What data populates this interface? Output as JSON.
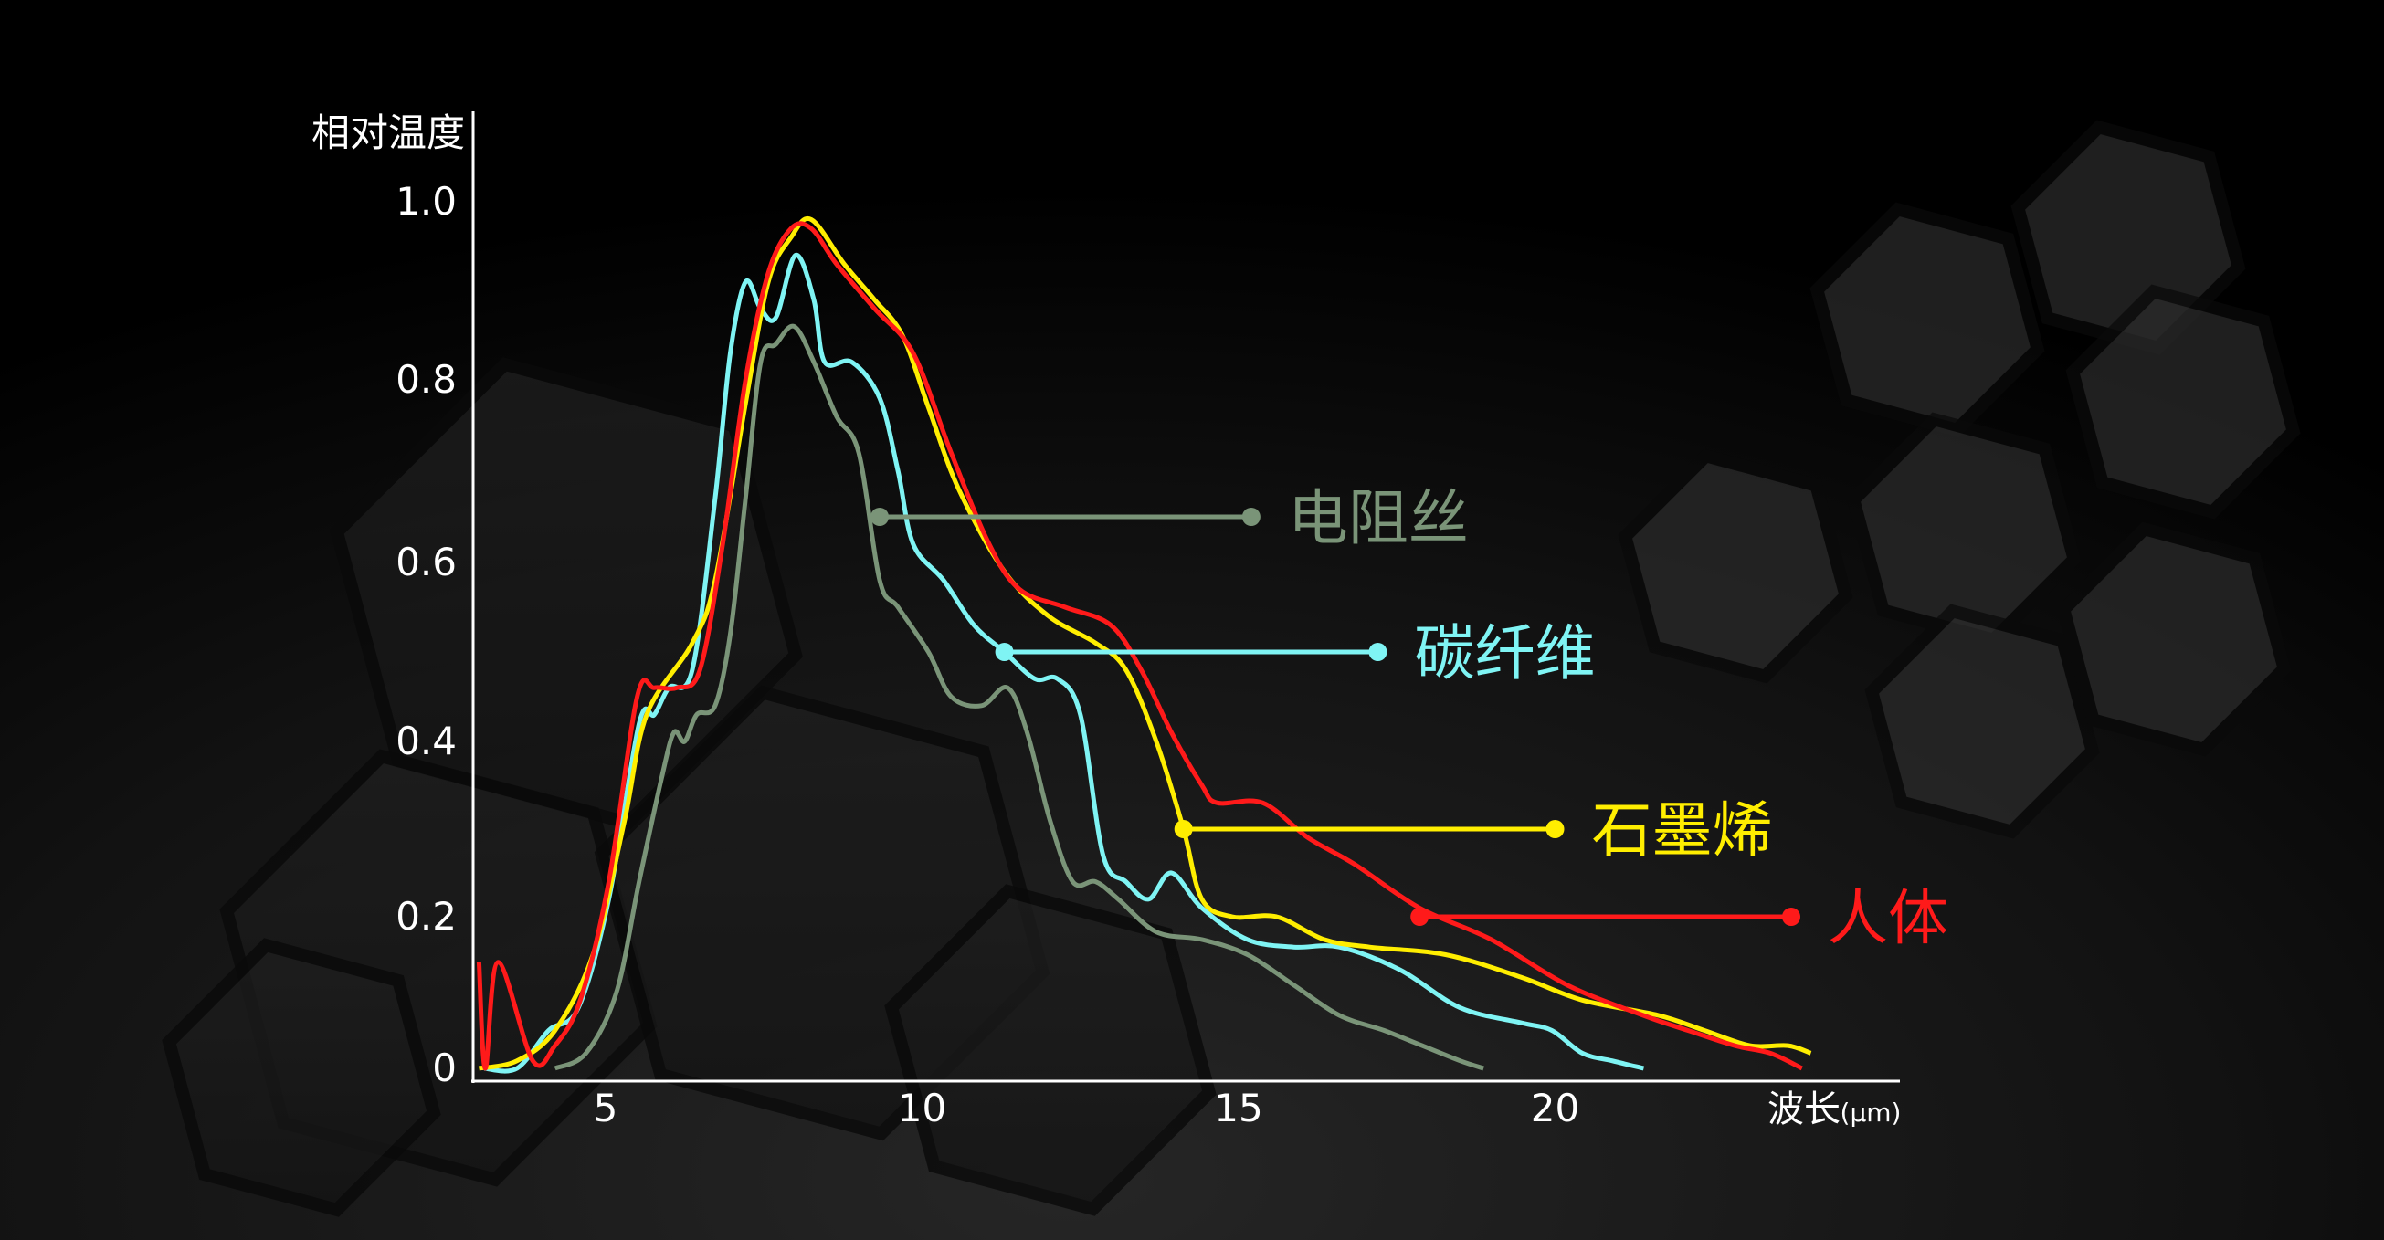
{
  "chart_data": {
    "type": "line",
    "title": "",
    "ylabel": "相对温度",
    "xlabel": "波长",
    "xunit": "(μm)",
    "xlim": [
      3,
      25
    ],
    "ylim": [
      0,
      1.0
    ],
    "xticks": [
      5,
      10,
      15,
      20
    ],
    "yticks": [
      {
        "value": 0,
        "label": "0"
      },
      {
        "value": 0.2,
        "label": "0.2"
      },
      {
        "value": 0.4,
        "label": "0.4"
      },
      {
        "value": 0.6,
        "label": "0.6"
      },
      {
        "value": 0.8,
        "label": "0.8"
      },
      {
        "value": 1.0,
        "label": "1.0"
      }
    ],
    "grid": false,
    "legend": "inline labels with leader lines",
    "series": [
      {
        "name": "电阻丝",
        "color": "#7a9478",
        "label_line": {
          "from": [
            9.33,
            0.65
          ],
          "to_x": 15.2
        },
        "points": [
          [
            4.2,
            0.0
          ],
          [
            4.69,
            0.02
          ],
          [
            5.17,
            0.1
          ],
          [
            5.53,
            0.24
          ],
          [
            5.89,
            0.36
          ],
          [
            6.08,
            0.41
          ],
          [
            6.25,
            0.4
          ],
          [
            6.44,
            0.43
          ],
          [
            6.73,
            0.44
          ],
          [
            6.97,
            0.52
          ],
          [
            7.21,
            0.67
          ],
          [
            7.45,
            0.82
          ],
          [
            7.69,
            0.84
          ],
          [
            7.98,
            0.86
          ],
          [
            8.29,
            0.82
          ],
          [
            8.65,
            0.76
          ],
          [
            9.0,
            0.72
          ],
          [
            9.33,
            0.58
          ],
          [
            9.62,
            0.55
          ],
          [
            10.1,
            0.5
          ],
          [
            10.46,
            0.45
          ],
          [
            10.94,
            0.44
          ],
          [
            11.35,
            0.46
          ],
          [
            11.66,
            0.41
          ],
          [
            12.02,
            0.31
          ],
          [
            12.38,
            0.24
          ],
          [
            12.74,
            0.24
          ],
          [
            13.1,
            0.22
          ],
          [
            13.7,
            0.18
          ],
          [
            14.42,
            0.17
          ],
          [
            15.14,
            0.15
          ],
          [
            15.87,
            0.11
          ],
          [
            16.59,
            0.07
          ],
          [
            17.3,
            0.05
          ],
          [
            17.9,
            0.03
          ],
          [
            18.5,
            0.01
          ],
          [
            18.87,
            0.0
          ]
        ]
      },
      {
        "name": "碳纤维",
        "color": "#7ff4f4",
        "label_line": {
          "from": [
            11.3,
            0.5
          ],
          "to_x": 17.2
        },
        "points": [
          [
            3.08,
            0.0
          ],
          [
            3.6,
            0.0
          ],
          [
            4.1,
            0.05
          ],
          [
            4.57,
            0.08
          ],
          [
            5.05,
            0.22
          ],
          [
            5.53,
            0.42
          ],
          [
            5.77,
            0.43
          ],
          [
            6.0,
            0.46
          ],
          [
            6.37,
            0.48
          ],
          [
            6.73,
            0.67
          ],
          [
            6.97,
            0.83
          ],
          [
            7.21,
            0.91
          ],
          [
            7.45,
            0.88
          ],
          [
            7.69,
            0.87
          ],
          [
            8.0,
            0.94
          ],
          [
            8.29,
            0.89
          ],
          [
            8.46,
            0.82
          ],
          [
            8.89,
            0.82
          ],
          [
            9.33,
            0.78
          ],
          [
            9.62,
            0.7
          ],
          [
            9.86,
            0.62
          ],
          [
            10.34,
            0.58
          ],
          [
            10.82,
            0.53
          ],
          [
            11.3,
            0.5
          ],
          [
            11.78,
            0.47
          ],
          [
            12.14,
            0.47
          ],
          [
            12.5,
            0.43
          ],
          [
            12.86,
            0.27
          ],
          [
            13.22,
            0.24
          ],
          [
            13.58,
            0.22
          ],
          [
            13.94,
            0.25
          ],
          [
            14.42,
            0.21
          ],
          [
            15.14,
            0.17
          ],
          [
            15.87,
            0.16
          ],
          [
            16.59,
            0.16
          ],
          [
            17.55,
            0.13
          ],
          [
            18.5,
            0.08
          ],
          [
            19.47,
            0.06
          ],
          [
            19.95,
            0.05
          ],
          [
            20.43,
            0.02
          ],
          [
            20.9,
            0.01
          ],
          [
            21.4,
            0.0
          ]
        ]
      },
      {
        "name": "石墨烯",
        "color": "#ffee00",
        "label_line": {
          "from": [
            14.13,
            0.3
          ],
          "to_x": 20.0
        },
        "points": [
          [
            3.0,
            0.0
          ],
          [
            3.6,
            0.01
          ],
          [
            4.2,
            0.05
          ],
          [
            4.8,
            0.15
          ],
          [
            5.3,
            0.31
          ],
          [
            5.65,
            0.43
          ],
          [
            6.37,
            0.51
          ],
          [
            6.73,
            0.58
          ],
          [
            7.2,
            0.77
          ],
          [
            7.57,
            0.91
          ],
          [
            7.93,
            0.96
          ],
          [
            8.25,
            0.98
          ],
          [
            8.77,
            0.93
          ],
          [
            9.25,
            0.89
          ],
          [
            9.69,
            0.85
          ],
          [
            10.1,
            0.77
          ],
          [
            10.58,
            0.68
          ],
          [
            11.3,
            0.59
          ],
          [
            12.0,
            0.54
          ],
          [
            12.74,
            0.51
          ],
          [
            13.22,
            0.48
          ],
          [
            13.7,
            0.4
          ],
          [
            14.13,
            0.3
          ],
          [
            14.42,
            0.22
          ],
          [
            14.9,
            0.2
          ],
          [
            15.6,
            0.2
          ],
          [
            16.35,
            0.17
          ],
          [
            17.07,
            0.16
          ],
          [
            18.27,
            0.15
          ],
          [
            19.47,
            0.12
          ],
          [
            20.43,
            0.09
          ],
          [
            21.63,
            0.07
          ],
          [
            22.36,
            0.05
          ],
          [
            23.08,
            0.03
          ],
          [
            23.68,
            0.03
          ],
          [
            24.04,
            0.02
          ]
        ]
      },
      {
        "name": "人体",
        "color": "#ff1a1a",
        "label_line": {
          "from": [
            17.86,
            0.2
          ],
          "to_x": 23.73
        },
        "points": [
          [
            3.0,
            0.14
          ],
          [
            3.1,
            0.0
          ],
          [
            3.3,
            0.14
          ],
          [
            3.85,
            0.01
          ],
          [
            4.2,
            0.03
          ],
          [
            4.6,
            0.09
          ],
          [
            5.05,
            0.24
          ],
          [
            5.5,
            0.45
          ],
          [
            5.77,
            0.46
          ],
          [
            6.13,
            0.46
          ],
          [
            6.49,
            0.48
          ],
          [
            6.85,
            0.62
          ],
          [
            7.21,
            0.8
          ],
          [
            7.57,
            0.92
          ],
          [
            7.93,
            0.97
          ],
          [
            8.25,
            0.97
          ],
          [
            8.65,
            0.93
          ],
          [
            9.25,
            0.88
          ],
          [
            9.86,
            0.83
          ],
          [
            10.46,
            0.72
          ],
          [
            11.06,
            0.62
          ],
          [
            11.54,
            0.57
          ],
          [
            12.26,
            0.55
          ],
          [
            12.98,
            0.53
          ],
          [
            13.46,
            0.48
          ],
          [
            13.94,
            0.41
          ],
          [
            14.42,
            0.35
          ],
          [
            14.66,
            0.33
          ],
          [
            15.38,
            0.33
          ],
          [
            16.1,
            0.29
          ],
          [
            16.83,
            0.26
          ],
          [
            17.86,
            0.21
          ],
          [
            18.99,
            0.17
          ],
          [
            20.19,
            0.11
          ],
          [
            21.39,
            0.07
          ],
          [
            22.1,
            0.05
          ],
          [
            22.84,
            0.03
          ],
          [
            23.4,
            0.02
          ],
          [
            23.9,
            0.0
          ]
        ]
      }
    ]
  }
}
